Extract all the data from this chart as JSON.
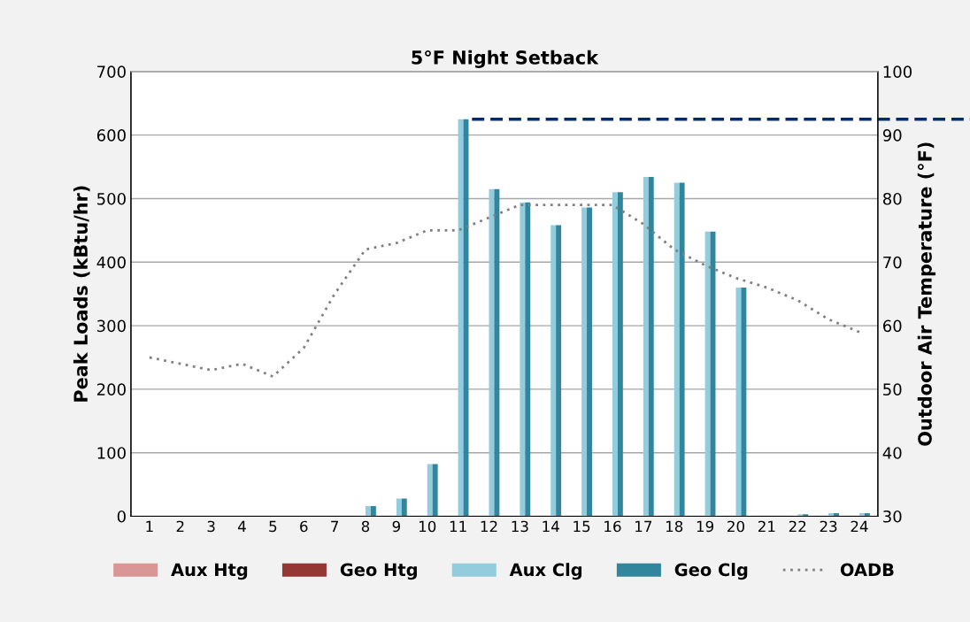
{
  "chart_data": {
    "type": "bar",
    "title": "5°F Night Setback",
    "ylabel": "Peak Loads (kBtu/hr)",
    "y2label": "Outdoor Air Temperature (°F)",
    "categories": [
      "1",
      "2",
      "3",
      "4",
      "5",
      "6",
      "7",
      "8",
      "9",
      "10",
      "11",
      "12",
      "13",
      "14",
      "15",
      "16",
      "17",
      "18",
      "19",
      "20",
      "21",
      "22",
      "23",
      "24"
    ],
    "series": [
      {
        "name": "Aux Htg",
        "color": "#d99694",
        "values": [
          0,
          0,
          0,
          0,
          0,
          0,
          0,
          0,
          0,
          0,
          0,
          0,
          0,
          0,
          0,
          0,
          0,
          0,
          0,
          0,
          0,
          0,
          0,
          0
        ]
      },
      {
        "name": "Geo Htg",
        "color": "#953735",
        "values": [
          0,
          0,
          0,
          0,
          0,
          0,
          0,
          0,
          0,
          0,
          0,
          0,
          0,
          0,
          0,
          0,
          0,
          0,
          0,
          0,
          0,
          0,
          0,
          0
        ]
      },
      {
        "name": "Aux Clg",
        "color": "#93cddd",
        "values": [
          0,
          0,
          0,
          0,
          0,
          0,
          0,
          16,
          28,
          82,
          625,
          515,
          494,
          458,
          486,
          510,
          534,
          525,
          448,
          360,
          0,
          3,
          5,
          5
        ]
      },
      {
        "name": "Geo Clg",
        "color": "#31859c",
        "values": [
          0,
          0,
          0,
          0,
          0,
          0,
          0,
          16,
          28,
          82,
          625,
          515,
          494,
          458,
          486,
          510,
          534,
          525,
          448,
          360,
          0,
          3,
          5,
          5
        ]
      },
      {
        "name": "OADB",
        "type": "line",
        "axis": "y2",
        "color": "#808080",
        "line_style": "dotted",
        "values": [
          55,
          54,
          53,
          54,
          52,
          56.5,
          65,
          72,
          73,
          75,
          75,
          77,
          79,
          79,
          79,
          79,
          76,
          72,
          69.5,
          67.5,
          66,
          64,
          61,
          59
        ]
      }
    ],
    "ylim": [
      0,
      700
    ],
    "yticks": [
      0,
      100,
      200,
      300,
      400,
      500,
      600,
      700
    ],
    "y2lim": [
      30,
      100
    ],
    "y2ticks": [
      30,
      40,
      50,
      60,
      70,
      80,
      90,
      100
    ],
    "ref_lines": [
      {
        "axis": "y",
        "value": 625,
        "color": "#002b6e",
        "line_style": "dashed"
      }
    ],
    "grid": "y",
    "legend": "bottom"
  }
}
